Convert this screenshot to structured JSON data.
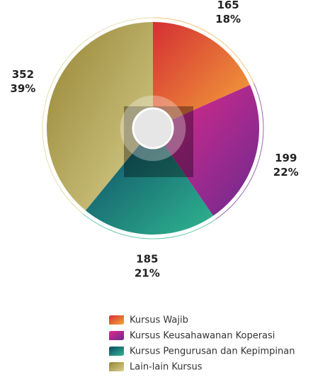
{
  "chart_data": {
    "type": "pie",
    "categories": [
      "Kursus Wajib",
      "Kursus Keusahawanan Koperasi",
      "Kursus Pengurusan dan Kepimpinan",
      "Lain-lain Kursus"
    ],
    "values": [
      165,
      199,
      185,
      352
    ],
    "value_labels": [
      "18%",
      "22%",
      "21%",
      "39%"
    ],
    "colors": [
      [
        "#d42f33",
        "#f5a83b"
      ],
      [
        "#e3288b",
        "#6a2b8f"
      ],
      [
        "#0d4763",
        "#2fb690"
      ],
      [
        "#968534",
        "#d8cf8e"
      ]
    ]
  }
}
